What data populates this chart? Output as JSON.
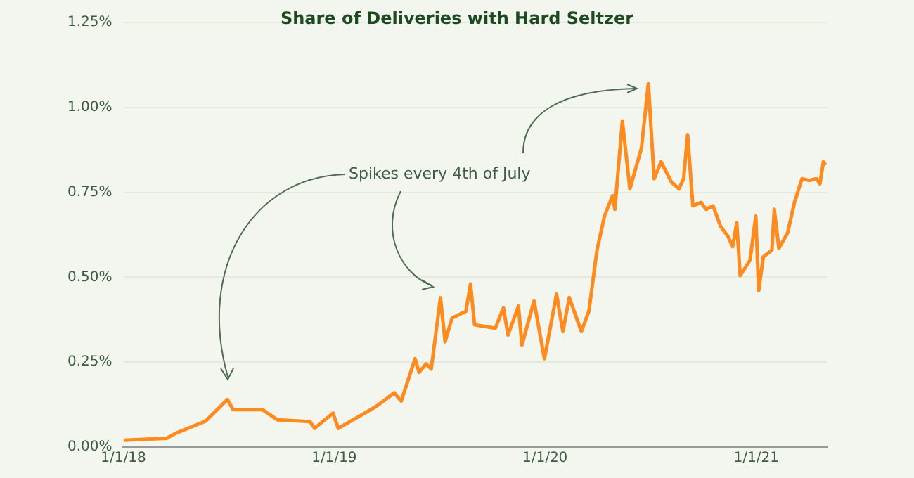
{
  "chart_data": {
    "type": "line",
    "title": "Share of Deliveries with Hard Seltzer",
    "annotations": [
      "Spikes every 4th of July"
    ],
    "x": [
      "2018-01-01",
      "2018-03-17",
      "2018-04-01",
      "2018-05-23",
      "2018-06-30",
      "2018-07-10",
      "2018-08-30",
      "2018-09-25",
      "2018-11-20",
      "2018-11-28",
      "2018-12-30",
      "2019-01-08",
      "2019-03-15",
      "2019-04-15",
      "2019-04-27",
      "2019-05-21",
      "2019-05-28",
      "2019-06-09",
      "2019-06-18",
      "2019-07-04",
      "2019-07-12",
      "2019-07-24",
      "2019-08-17",
      "2019-08-25",
      "2019-09-01",
      "2019-10-07",
      "2019-10-21",
      "2019-10-29",
      "2019-11-16",
      "2019-11-22",
      "2019-12-13",
      "2019-12-31",
      "2020-01-21",
      "2020-02-01",
      "2020-02-12",
      "2020-03-04",
      "2020-03-17",
      "2020-03-31",
      "2020-04-13",
      "2020-04-27",
      "2020-05-01",
      "2020-05-14",
      "2020-05-27",
      "2020-06-06",
      "2020-06-16",
      "2020-06-28",
      "2020-07-08",
      "2020-07-20",
      "2020-08-07",
      "2020-08-20",
      "2020-08-28",
      "2020-09-04",
      "2020-09-13",
      "2020-09-27",
      "2020-10-06",
      "2020-10-18",
      "2020-10-31",
      "2020-11-13",
      "2020-11-21",
      "2020-11-28",
      "2020-12-04",
      "2020-12-21",
      "2020-12-31",
      "2021-01-05",
      "2021-01-13",
      "2021-01-28",
      "2021-02-01",
      "2021-02-09",
      "2021-02-24",
      "2021-03-08",
      "2021-03-21",
      "2021-04-02",
      "2021-04-15",
      "2021-04-21",
      "2021-04-27",
      "2021-05-01"
    ],
    "series": [
      {
        "color": "#ff8a1e",
        "values": [
          0.02,
          0.026,
          0.04,
          0.076,
          0.14,
          0.11,
          0.11,
          0.08,
          0.075,
          0.055,
          0.1,
          0.055,
          0.12,
          0.16,
          0.135,
          0.26,
          0.22,
          0.245,
          0.23,
          0.44,
          0.31,
          0.38,
          0.4,
          0.48,
          0.36,
          0.35,
          0.41,
          0.33,
          0.415,
          0.3,
          0.43,
          0.26,
          0.45,
          0.34,
          0.44,
          0.34,
          0.4,
          0.58,
          0.68,
          0.74,
          0.7,
          0.96,
          0.76,
          0.82,
          0.88,
          1.07,
          0.79,
          0.84,
          0.78,
          0.76,
          0.79,
          0.92,
          0.71,
          0.72,
          0.7,
          0.71,
          0.65,
          0.62,
          0.59,
          0.66,
          0.505,
          0.55,
          0.68,
          0.46,
          0.56,
          0.58,
          0.7,
          0.585,
          0.63,
          0.72,
          0.79,
          0.785,
          0.79,
          0.775,
          0.84,
          0.83
        ]
      }
    ],
    "xlim": [
      "2018-01-01",
      "2021-05-03"
    ],
    "xticks": [
      {
        "value": "2018-01-01",
        "label": "1/1/18"
      },
      {
        "value": "2019-01-01",
        "label": "1/1/19"
      },
      {
        "value": "2020-01-01",
        "label": "1/1/20"
      },
      {
        "value": "2021-01-01",
        "label": "1/1/21"
      }
    ],
    "ylim": [
      0,
      1.25
    ],
    "yticks": [
      {
        "value": 0,
        "label": "0.00%"
      },
      {
        "value": 0.25,
        "label": "0.25%"
      },
      {
        "value": 0.5,
        "label": "0.50%"
      },
      {
        "value": 0.75,
        "label": "0.75%"
      },
      {
        "value": 1,
        "label": "1.00%"
      },
      {
        "value": 1.25,
        "label": "1.25%"
      }
    ],
    "grid": "y",
    "legend": false,
    "marker": "none",
    "line_style": "solid"
  }
}
